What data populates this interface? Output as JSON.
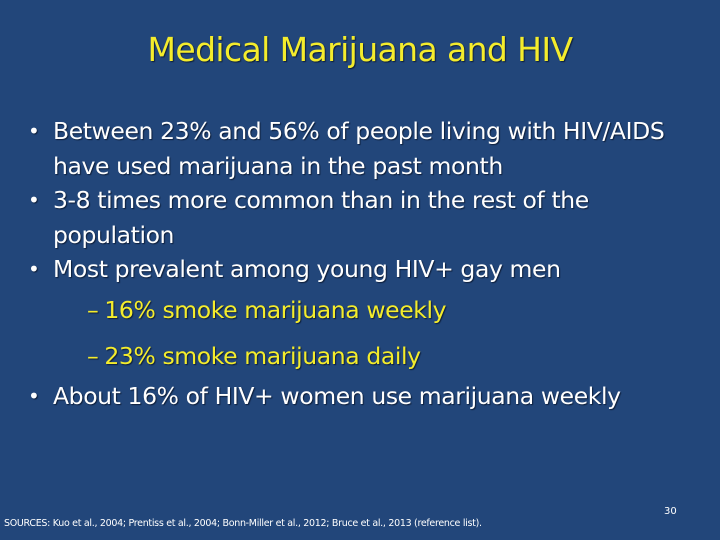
{
  "slide": {
    "title": "Medical Marijuana and HIV",
    "bullet_marker": "•",
    "sub_marker": "–",
    "bullets": [
      {
        "text": "Between 23% and 56% of people living with HIV/AIDS have used marijuana in the past month"
      },
      {
        "text": "3-8 times more common than in the rest of the population"
      },
      {
        "text": "Most prevalent among young HIV+ gay men"
      },
      {
        "text": "About 16% of HIV+ women use marijuana weekly"
      }
    ],
    "sub_bullets": [
      {
        "text": "16% smoke marijuana weekly"
      },
      {
        "text": "23% smoke marijuana daily"
      }
    ],
    "sources": "SOURCES: Kuo et al., 2004; Prentiss et al., 2004; Bonn-Miller et al., 2012; Bruce et al., 2013 (reference list).",
    "page_number": "30",
    "colors": {
      "background": "#22467a",
      "title": "#f4ec2c",
      "body_text": "#ffffff",
      "sub_text": "#f4ec2c"
    }
  }
}
